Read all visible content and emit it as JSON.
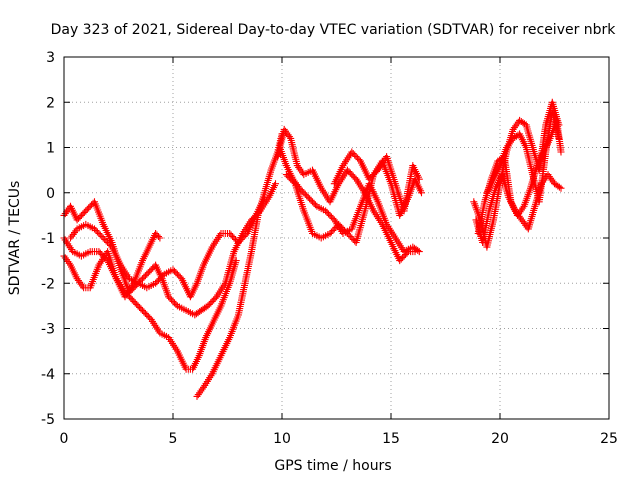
{
  "chart_data": {
    "type": "scatter",
    "title": "Day 323 of 2021, Sidereal Day-to-day VTEC variation (SDTVAR) for receiver nbrk",
    "xlabel": "GPS time / hours",
    "ylabel": "SDTVAR / TECUs",
    "xlim": [
      0,
      25
    ],
    "ylim": [
      -5,
      3
    ],
    "xticks": [
      "0",
      "5",
      "10",
      "15",
      "20",
      "25"
    ],
    "yticks": [
      "-5",
      "-4",
      "-3",
      "-2",
      "-1",
      "0",
      "1",
      "2",
      "3"
    ],
    "grid": true,
    "marker": "+",
    "series_color": "#ff0000",
    "series": [
      {
        "name": "trace-1",
        "x": [
          0.0,
          0.3,
          0.6,
          1.0,
          1.4,
          1.8,
          2.2,
          2.6,
          3.0,
          3.4,
          3.8,
          4.2,
          4.5,
          4.8,
          5.2,
          5.6,
          6.0,
          6.3,
          6.6,
          7.0,
          7.4,
          7.8,
          8.2,
          8.6,
          9.0,
          9.4,
          9.7
        ],
        "y": [
          -0.5,
          -0.3,
          -0.6,
          -0.4,
          -0.2,
          -0.7,
          -1.1,
          -1.7,
          -2.2,
          -2.0,
          -1.8,
          -1.6,
          -1.9,
          -2.3,
          -2.5,
          -2.6,
          -2.7,
          -2.6,
          -2.5,
          -2.3,
          -2.0,
          -1.3,
          -0.9,
          -0.6,
          -0.4,
          -0.1,
          0.2
        ]
      },
      {
        "name": "trace-2",
        "x": [
          0.0,
          0.3,
          0.6,
          0.9,
          1.2,
          1.6,
          2.0,
          2.4,
          2.8,
          3.2,
          3.6,
          3.9,
          4.2,
          4.4
        ],
        "y": [
          -1.4,
          -1.6,
          -1.9,
          -2.1,
          -2.1,
          -1.6,
          -1.3,
          -1.9,
          -2.3,
          -2.0,
          -1.5,
          -1.2,
          -0.9,
          -1.0
        ]
      },
      {
        "name": "trace-3",
        "x": [
          0.0,
          0.4,
          0.8,
          1.2,
          1.6,
          2.0,
          2.4,
          2.8,
          3.2,
          3.6,
          4.0,
          4.4,
          4.8,
          5.2,
          5.6,
          5.9,
          6.2,
          6.5,
          6.8,
          7.2,
          7.6,
          7.9
        ],
        "y": [
          -1.0,
          -1.3,
          -1.4,
          -1.3,
          -1.3,
          -1.5,
          -1.9,
          -2.2,
          -2.4,
          -2.6,
          -2.8,
          -3.1,
          -3.2,
          -3.5,
          -3.9,
          -3.9,
          -3.6,
          -3.2,
          -2.9,
          -2.5,
          -2.0,
          -1.5
        ]
      },
      {
        "name": "trace-4",
        "x": [
          0.3,
          0.6,
          1.0,
          1.4,
          1.8,
          2.2,
          2.6,
          3.0,
          3.4,
          3.8,
          4.2,
          4.6,
          5.0,
          5.4,
          5.8,
          6.1,
          6.4,
          6.8,
          7.2,
          7.6,
          8.0,
          8.4,
          8.8,
          9.2
        ],
        "y": [
          -1.0,
          -0.8,
          -0.7,
          -0.8,
          -1.0,
          -1.2,
          -1.6,
          -1.9,
          -2.0,
          -2.1,
          -2.0,
          -1.8,
          -1.7,
          -1.9,
          -2.3,
          -2.0,
          -1.6,
          -1.2,
          -0.9,
          -0.9,
          -1.1,
          -0.9,
          -0.5,
          -0.1
        ]
      },
      {
        "name": "trace-5",
        "x": [
          6.1,
          6.4,
          6.8,
          7.2,
          7.6,
          8.0,
          8.3,
          8.6,
          8.9,
          9.2,
          9.5,
          9.8,
          10.0
        ],
        "y": [
          -4.5,
          -4.3,
          -4.0,
          -3.6,
          -3.2,
          -2.7,
          -2.0,
          -1.3,
          -0.5,
          0.0,
          0.5,
          0.9,
          1.3
        ]
      },
      {
        "name": "trace-6",
        "x": [
          9.8,
          10.1,
          10.4,
          10.7,
          11.0,
          11.4,
          11.8,
          12.2,
          12.6,
          13.0,
          13.4,
          13.8,
          14.2,
          14.6,
          15.0,
          15.4,
          15.8,
          16.1
        ],
        "y": [
          0.8,
          1.4,
          1.2,
          0.6,
          0.4,
          0.5,
          0.1,
          -0.2,
          0.2,
          0.5,
          0.3,
          0.0,
          -0.4,
          -0.7,
          -1.1,
          -1.5,
          -1.3,
          -1.3
        ]
      },
      {
        "name": "trace-7",
        "x": [
          9.9,
          10.2,
          10.5,
          10.8,
          11.2,
          11.6,
          12.0,
          12.4,
          12.8,
          13.2,
          13.6,
          14.0,
          14.4,
          14.8,
          15.2,
          15.6,
          16.0,
          16.3
        ],
        "y": [
          1.0,
          0.6,
          0.3,
          0.1,
          -0.1,
          -0.3,
          -0.4,
          -0.6,
          -0.9,
          -0.8,
          -0.3,
          0.2,
          -0.2,
          -0.7,
          -1.0,
          -1.3,
          -1.2,
          -1.3
        ]
      },
      {
        "name": "trace-8",
        "x": [
          10.2,
          10.6,
          11.0,
          11.4,
          11.8,
          12.2,
          12.6,
          13.0,
          13.4,
          13.8,
          14.2,
          14.6,
          15.0,
          15.4,
          15.8,
          16.1,
          16.4
        ],
        "y": [
          0.4,
          0.2,
          -0.4,
          -0.9,
          -1.0,
          -0.9,
          -0.7,
          -0.9,
          -1.1,
          -0.4,
          0.4,
          0.7,
          0.2,
          -0.5,
          -0.1,
          0.3,
          0.0
        ]
      },
      {
        "name": "trace-9",
        "x": [
          12.4,
          12.8,
          13.2,
          13.6,
          14.0,
          14.4,
          14.8,
          15.2,
          15.6,
          16.0,
          16.3
        ],
        "y": [
          0.2,
          0.6,
          0.9,
          0.7,
          0.3,
          0.5,
          0.8,
          0.2,
          -0.4,
          0.6,
          0.3
        ]
      },
      {
        "name": "trace-10",
        "x": [
          18.8,
          19.1,
          19.4,
          19.7,
          20.0,
          20.3,
          20.6,
          20.9,
          21.2,
          21.5,
          21.8,
          22.1,
          22.4,
          22.7
        ],
        "y": [
          -0.2,
          -0.6,
          -1.2,
          -0.6,
          0.2,
          0.9,
          1.4,
          1.6,
          1.5,
          1.0,
          0.5,
          1.5,
          2.0,
          1.5
        ]
      },
      {
        "name": "trace-11",
        "x": [
          18.9,
          19.2,
          19.5,
          19.8,
          20.1,
          20.4,
          20.7,
          21.0,
          21.3,
          21.6,
          21.9,
          22.2,
          22.5,
          22.8
        ],
        "y": [
          -0.6,
          -1.1,
          -0.4,
          0.1,
          0.4,
          -0.1,
          -0.4,
          -0.6,
          -0.8,
          -0.3,
          0.2,
          0.4,
          0.2,
          0.1
        ]
      },
      {
        "name": "trace-12",
        "x": [
          19.0,
          19.3,
          19.6,
          19.9,
          20.2,
          20.5,
          20.8,
          21.1,
          21.4,
          21.7,
          22.0,
          22.3,
          22.6,
          22.8
        ],
        "y": [
          -0.9,
          -0.2,
          0.3,
          0.7,
          0.8,
          -0.2,
          -0.5,
          -0.3,
          0.1,
          0.6,
          0.9,
          1.2,
          1.6,
          0.9
        ]
      },
      {
        "name": "trace-13",
        "x": [
          19.4,
          19.7,
          20.0,
          20.3,
          20.6,
          20.9,
          21.2,
          21.5,
          21.8,
          22.1,
          22.4,
          22.7
        ],
        "y": [
          0.0,
          0.3,
          0.6,
          1.0,
          1.2,
          1.3,
          1.0,
          0.4,
          -0.2,
          0.9,
          1.8,
          1.2
        ]
      }
    ]
  }
}
